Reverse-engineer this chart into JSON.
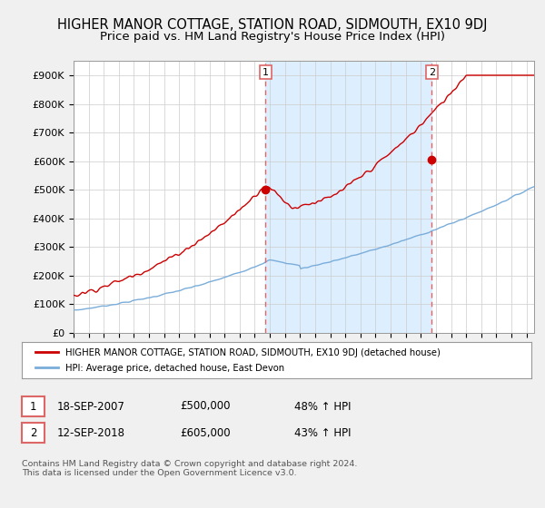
{
  "title": "HIGHER MANOR COTTAGE, STATION ROAD, SIDMOUTH, EX10 9DJ",
  "subtitle": "Price paid vs. HM Land Registry's House Price Index (HPI)",
  "ylabel_ticks": [
    "£0",
    "£100K",
    "£200K",
    "£300K",
    "£400K",
    "£500K",
    "£600K",
    "£700K",
    "£800K",
    "£900K"
  ],
  "ytick_values": [
    0,
    100000,
    200000,
    300000,
    400000,
    500000,
    600000,
    700000,
    800000,
    900000
  ],
  "ylim": [
    0,
    950000
  ],
  "xlim_start": 1995.0,
  "xlim_end": 2025.5,
  "sale1_x": 2007.72,
  "sale1_y": 500000,
  "sale1_label": "1",
  "sale2_x": 2018.72,
  "sale2_y": 605000,
  "sale2_label": "2",
  "vline1_x": 2007.72,
  "vline2_x": 2018.72,
  "shade_color": "#ddeeff",
  "legend_line1": "HIGHER MANOR COTTAGE, STATION ROAD, SIDMOUTH, EX10 9DJ (detached house)",
  "legend_line2": "HPI: Average price, detached house, East Devon",
  "table_row1_num": "1",
  "table_row1_date": "18-SEP-2007",
  "table_row1_price": "£500,000",
  "table_row1_hpi": "48% ↑ HPI",
  "table_row2_num": "2",
  "table_row2_date": "12-SEP-2018",
  "table_row2_price": "£605,000",
  "table_row2_hpi": "43% ↑ HPI",
  "footnote": "Contains HM Land Registry data © Crown copyright and database right 2024.\nThis data is licensed under the Open Government Licence v3.0.",
  "bg_color": "#f0f0f0",
  "plot_bg_color": "#ffffff",
  "red_color": "#cc0000",
  "blue_color": "#7aadda",
  "vline_color": "#dd6666",
  "grid_color": "#cccccc",
  "title_fontsize": 10.5,
  "subtitle_fontsize": 9.5
}
